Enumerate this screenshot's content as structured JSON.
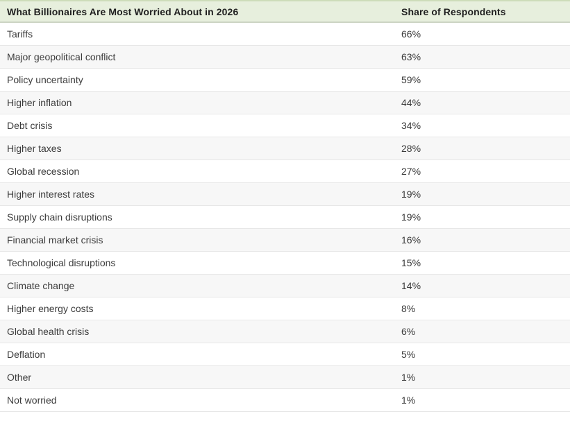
{
  "colors": {
    "header_bg": "#e7efdd",
    "header_border_top": "#cddcba",
    "header_border_bottom": "#ccd4c3",
    "row_bg": "#ffffff",
    "row_alt_bg": "#f7f7f7",
    "row_separator": "#e7e7e7",
    "header_text": "#202020",
    "row_text": "#3b3b3b"
  },
  "table": {
    "columns": {
      "topic": "What Billionaires Are Most Worried About in 2026",
      "share": "Share of Respondents"
    },
    "rows": [
      {
        "label": "Tariffs",
        "value": "66%"
      },
      {
        "label": "Major geopolitical conflict",
        "value": "63%"
      },
      {
        "label": "Policy uncertainty",
        "value": "59%"
      },
      {
        "label": "Higher inflation",
        "value": "44%"
      },
      {
        "label": "Debt crisis",
        "value": "34%"
      },
      {
        "label": "Higher taxes",
        "value": "28%"
      },
      {
        "label": "Global recession",
        "value": "27%"
      },
      {
        "label": "Higher interest rates",
        "value": "19%"
      },
      {
        "label": "Supply chain disruptions",
        "value": "19%"
      },
      {
        "label": "Financial market crisis",
        "value": "16%"
      },
      {
        "label": "Technological disruptions",
        "value": "15%"
      },
      {
        "label": "Climate change",
        "value": "14%"
      },
      {
        "label": "Higher energy costs",
        "value": "8%"
      },
      {
        "label": "Global health crisis",
        "value": "6%"
      },
      {
        "label": "Deflation",
        "value": "5%"
      },
      {
        "label": "Other",
        "value": "1%"
      },
      {
        "label": "Not worried",
        "value": "1%"
      }
    ]
  },
  "chart_data": {
    "type": "table",
    "title": "What Billionaires Are Most Worried About in 2026",
    "columns": [
      "What Billionaires Are Most Worried About in 2026",
      "Share of Respondents"
    ],
    "categories": [
      "Tariffs",
      "Major geopolitical conflict",
      "Policy uncertainty",
      "Higher inflation",
      "Debt crisis",
      "Higher taxes",
      "Global recession",
      "Higher interest rates",
      "Supply chain disruptions",
      "Financial market crisis",
      "Technological disruptions",
      "Climate change",
      "Higher energy costs",
      "Global health crisis",
      "Deflation",
      "Other",
      "Not worried"
    ],
    "values": [
      66,
      63,
      59,
      44,
      34,
      28,
      27,
      19,
      19,
      16,
      15,
      14,
      8,
      6,
      5,
      1,
      1
    ],
    "value_unit": "%",
    "xlabel": "",
    "ylabel": "Share of Respondents"
  }
}
